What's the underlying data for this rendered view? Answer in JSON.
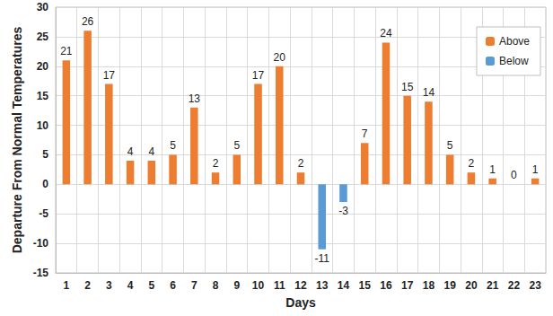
{
  "chart_data": {
    "type": "bar",
    "xlabel": "Days",
    "ylabel": "Departure From Normal Temperatures",
    "categories": [
      "1",
      "2",
      "3",
      "4",
      "5",
      "6",
      "7",
      "8",
      "9",
      "10",
      "11",
      "12",
      "13",
      "14",
      "15",
      "16",
      "17",
      "18",
      "19",
      "20",
      "21",
      "22",
      "23"
    ],
    "series": [
      {
        "name": "Above",
        "color": "#ED7D31",
        "values": [
          21,
          26,
          17,
          4,
          4,
          5,
          13,
          2,
          5,
          17,
          20,
          2,
          null,
          null,
          7,
          24,
          15,
          14,
          5,
          2,
          1,
          0,
          1
        ]
      },
      {
        "name": "Below",
        "color": "#5B9BD5",
        "values": [
          null,
          null,
          null,
          null,
          null,
          null,
          null,
          null,
          null,
          null,
          null,
          null,
          -11,
          -3,
          null,
          null,
          null,
          null,
          null,
          null,
          null,
          null,
          null
        ]
      }
    ],
    "ylim": [
      -15,
      30
    ],
    "yticks": [
      -15,
      -10,
      -5,
      0,
      5,
      10,
      15,
      20,
      25,
      30
    ],
    "grid": true,
    "legend": "upper right",
    "data_labels": true
  }
}
